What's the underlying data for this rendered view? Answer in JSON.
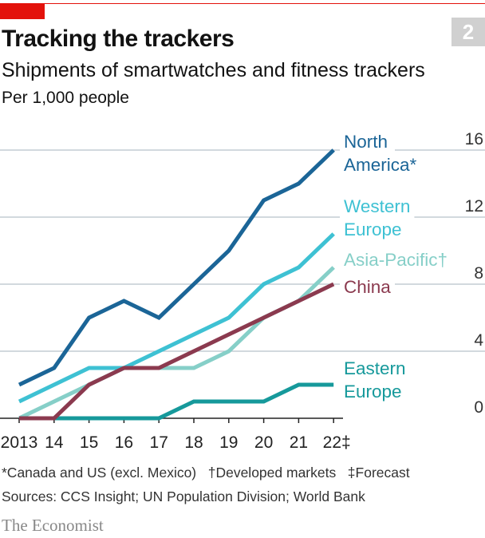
{
  "header": {
    "badge": "2",
    "title": "Tracking the trackers",
    "subtitle": "Shipments of smartwatches and fitness trackers",
    "unit": "Per 1,000 people"
  },
  "chart_data": {
    "type": "line",
    "title": "Tracking the trackers",
    "subtitle": "Shipments of smartwatches and fitness trackers",
    "ylabel": "Per 1,000 people",
    "categories": [
      "2013",
      "14",
      "15",
      "16",
      "17",
      "18",
      "19",
      "20",
      "21",
      "22‡"
    ],
    "ylim": [
      0,
      16
    ],
    "yticks": [
      0,
      4,
      8,
      12,
      16
    ],
    "grid": true,
    "series": [
      {
        "name": "North America*",
        "label_lines": [
          "North",
          "America*"
        ],
        "color": "#1b6597",
        "values": [
          2,
          3,
          6,
          7,
          6,
          8,
          10,
          13,
          14,
          16
        ]
      },
      {
        "name": "Western Europe",
        "label_lines": [
          "Western",
          "Europe"
        ],
        "color": "#3ec1d3",
        "values": [
          1,
          2,
          3,
          3,
          4,
          5,
          6,
          8,
          9,
          11
        ]
      },
      {
        "name": "Asia-Pacific†",
        "label_lines": [
          "Asia-Pacific†"
        ],
        "color": "#86cfc8",
        "values": [
          0,
          1,
          2,
          3,
          3,
          3,
          4,
          6,
          7,
          9
        ]
      },
      {
        "name": "China",
        "label_lines": [
          "China"
        ],
        "color": "#8b3a4f",
        "values": [
          0,
          0,
          2,
          3,
          3,
          4,
          5,
          6,
          7,
          8
        ]
      },
      {
        "name": "Eastern Europe",
        "label_lines": [
          "Eastern",
          "Europe"
        ],
        "color": "#16999b",
        "values": [
          0,
          0,
          0,
          0,
          0,
          1,
          1,
          1,
          2,
          2
        ]
      }
    ]
  },
  "footer": {
    "notes": "*Canada and US (excl. Mexico)   †Developed markets   ‡Forecast",
    "sources": "Sources: CCS Insight; UN Population Division; World Bank",
    "brand": "The Economist"
  }
}
